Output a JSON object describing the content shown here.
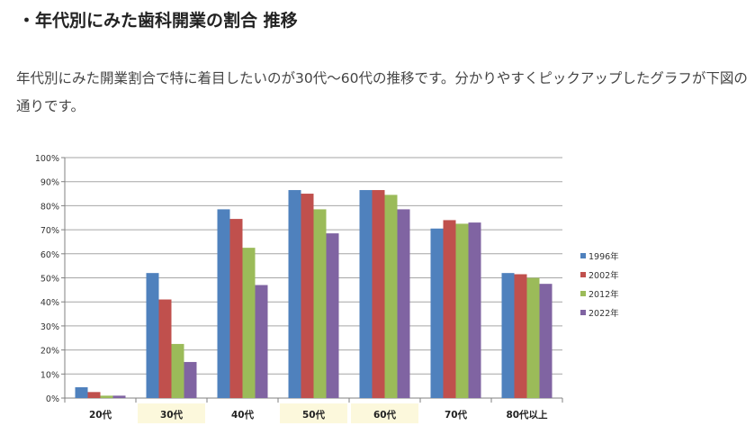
{
  "article": {
    "title": "・年代別にみた歯科開業の割合 推移",
    "description": "年代別にみた開業割合で特に着目したいのが30代〜60代の推移です。分かりやすくピックアップしたグラフが下図の通りです。"
  },
  "chart_data": {
    "type": "bar",
    "categories": [
      "20代",
      "30代",
      "40代",
      "50代",
      "60代",
      "70代",
      "80代以上"
    ],
    "highlighted_categories": [
      "30代",
      "50代",
      "60代"
    ],
    "series": [
      {
        "name": "1996年",
        "color": "#4f81bd",
        "values": [
          4.5,
          52,
          78.5,
          86.5,
          86.5,
          70.5,
          52
        ]
      },
      {
        "name": "2002年",
        "color": "#c0504d",
        "values": [
          2.5,
          41,
          74.5,
          85,
          86.5,
          74,
          51.5
        ]
      },
      {
        "name": "2012年",
        "color": "#9bbb59",
        "values": [
          1,
          22.5,
          62.5,
          78.5,
          84.5,
          72.5,
          50
        ]
      },
      {
        "name": "2022年",
        "color": "#8064a2",
        "values": [
          1,
          15,
          47,
          68.5,
          78.5,
          73,
          47.5
        ]
      }
    ],
    "ylim": [
      0,
      100
    ],
    "yticks": [
      "0%",
      "10%",
      "20%",
      "30%",
      "40%",
      "50%",
      "60%",
      "70%",
      "80%",
      "90%",
      "100%"
    ],
    "grid": true,
    "legend": "right",
    "highlight_color": "#fcf8dc"
  }
}
